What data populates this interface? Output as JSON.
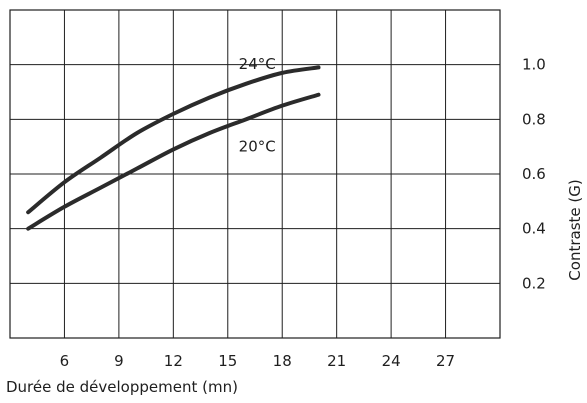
{
  "chart_data": {
    "type": "line",
    "xlabel": "Durée de développement (mn)",
    "ylabel": "Contraste (G)",
    "xlim": [
      3,
      30
    ],
    "ylim": [
      0,
      1.2
    ],
    "x_ticks": [
      "6",
      "9",
      "12",
      "15",
      "18",
      "21",
      "24",
      "27"
    ],
    "y_ticks": [
      "0.2",
      "0.4",
      "0.6",
      "0.8",
      "1.0"
    ],
    "grid": true,
    "series": [
      {
        "name": "24°C",
        "x": [
          4,
          6,
          8,
          10,
          12,
          14,
          16,
          18,
          20
        ],
        "y": [
          0.46,
          0.57,
          0.66,
          0.75,
          0.82,
          0.88,
          0.93,
          0.97,
          0.99
        ]
      },
      {
        "name": "20°C",
        "x": [
          4,
          6,
          8,
          10,
          12,
          14,
          16,
          18,
          20
        ],
        "y": [
          0.4,
          0.48,
          0.55,
          0.62,
          0.69,
          0.75,
          0.8,
          0.85,
          0.89
        ]
      }
    ]
  }
}
